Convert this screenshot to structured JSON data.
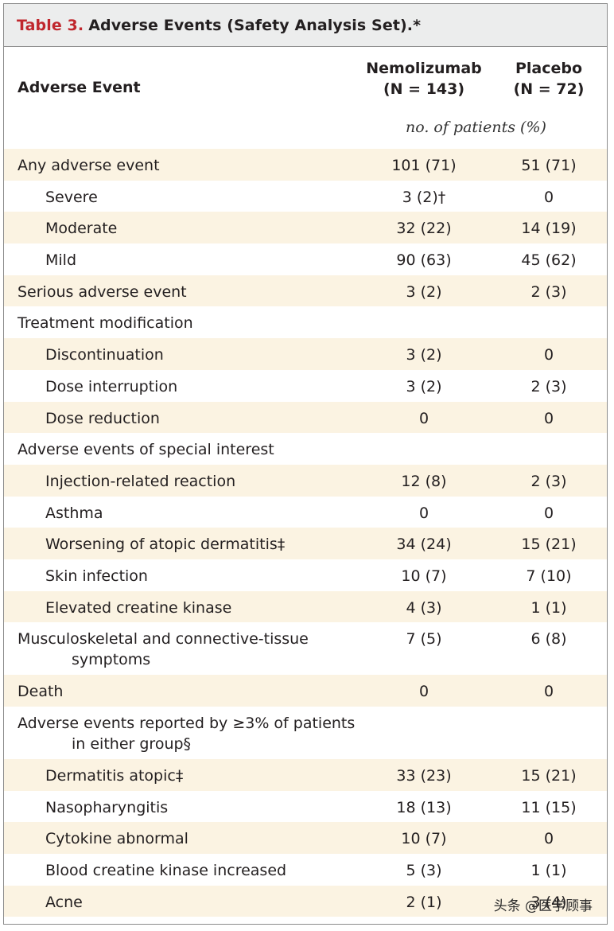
{
  "table": {
    "label": "Table 3.",
    "title": "Adverse Events (Safety Analysis Set).*",
    "header": {
      "event_col": "Adverse Event",
      "col1_line1": "Nemolizumab",
      "col1_line2": "(N = 143)",
      "col2_line1": "Placebo",
      "col2_line2": "(N = 72)",
      "units": "no. of patients (%)"
    },
    "rows": [
      {
        "label": "Any adverse event",
        "indent": false,
        "nemo": "101 (71)",
        "placebo": "51 (71)"
      },
      {
        "label": "Severe",
        "indent": true,
        "nemo": "3 (2)†",
        "placebo": "0"
      },
      {
        "label": "Moderate",
        "indent": true,
        "nemo": "32 (22)",
        "placebo": "14 (19)"
      },
      {
        "label": "Mild",
        "indent": true,
        "nemo": "90 (63)",
        "placebo": "45 (62)"
      },
      {
        "label": "Serious adverse event",
        "indent": false,
        "nemo": "3 (2)",
        "placebo": "2 (3)"
      },
      {
        "label": "Treatment modification",
        "indent": false,
        "nemo": "",
        "placebo": ""
      },
      {
        "label": "Discontinuation",
        "indent": true,
        "nemo": "3 (2)",
        "placebo": "0"
      },
      {
        "label": "Dose interruption",
        "indent": true,
        "nemo": "3 (2)",
        "placebo": "2 (3)"
      },
      {
        "label": "Dose reduction",
        "indent": true,
        "nemo": "0",
        "placebo": "0"
      },
      {
        "label": "Adverse events of special interest",
        "indent": false,
        "nemo": "",
        "placebo": ""
      },
      {
        "label": "Injection-related reaction",
        "indent": true,
        "nemo": "12 (8)",
        "placebo": "2 (3)"
      },
      {
        "label": "Asthma",
        "indent": true,
        "nemo": "0",
        "placebo": "0"
      },
      {
        "label": "Worsening of atopic dermatitis‡",
        "indent": true,
        "nemo": "34 (24)",
        "placebo": "15 (21)"
      },
      {
        "label": "Skin infection",
        "indent": true,
        "nemo": "10 (7)",
        "placebo": "7 (10)"
      },
      {
        "label": "Elevated creatine kinase",
        "indent": true,
        "nemo": "4 (3)",
        "placebo": "1 (1)"
      },
      {
        "label": "Musculoskeletal and connective-tissue",
        "label_cont": "symptoms",
        "indent": false,
        "nemo": "7 (5)",
        "placebo": "6 (8)"
      },
      {
        "label": "Death",
        "indent": false,
        "nemo": "0",
        "placebo": "0"
      },
      {
        "label": "Adverse events reported by ≥3% of patients",
        "label_cont": "in either group§",
        "indent": false,
        "nemo": "",
        "placebo": ""
      },
      {
        "label": "Dermatitis atopic‡",
        "indent": true,
        "nemo": "33 (23)",
        "placebo": "15 (21)"
      },
      {
        "label": "Nasopharyngitis",
        "indent": true,
        "nemo": "18 (13)",
        "placebo": "11 (15)"
      },
      {
        "label": "Cytokine abnormal",
        "indent": true,
        "nemo": "10 (7)",
        "placebo": "0"
      },
      {
        "label": "Blood creatine kinase increased",
        "indent": true,
        "nemo": "5 (3)",
        "placebo": "1 (1)"
      },
      {
        "label": "Acne",
        "indent": true,
        "nemo": "2 (1)",
        "placebo": "3 (4)"
      }
    ]
  },
  "watermark": "头条 @医学顾事",
  "colors": {
    "title_label": "#c0272d",
    "shade": "#fbf3e2",
    "titlebar_bg": "#eceded"
  }
}
